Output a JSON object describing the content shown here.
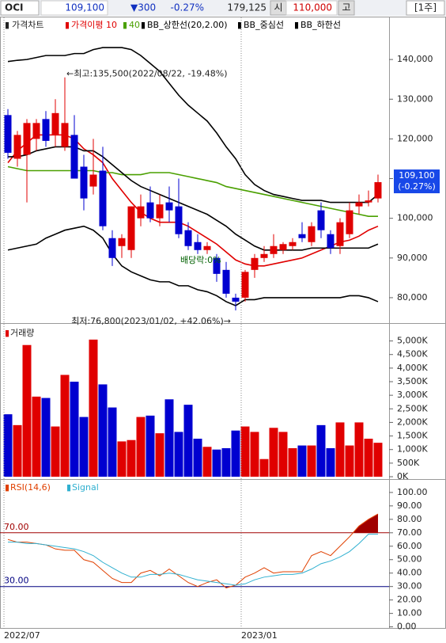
{
  "header": {
    "symbol": "OCI",
    "price": "109,100",
    "change": "▼300",
    "change_pct": "-0.27%",
    "volume": "179,125",
    "open_label": "시",
    "open": "110,000",
    "high_label": "고",
    "period": "[1주]"
  },
  "x_labels": [
    {
      "index": 0,
      "label": "2022/07"
    },
    {
      "index": 25,
      "label": "2023/01"
    }
  ],
  "chart_data": [
    {
      "type": "candlestick",
      "legend": "가격차트",
      "up_color": "#e00000",
      "down_color": "#0000d0",
      "open": [
        126000,
        115000,
        116000,
        120000,
        125000,
        121000,
        118000,
        121000,
        113000,
        108000,
        112000,
        95000,
        93000,
        92000,
        100000,
        104000,
        100000,
        104000,
        103000,
        97000,
        94000,
        92000,
        90000,
        87000,
        80000,
        80000,
        87000,
        90000,
        91000,
        92000,
        93000,
        96000,
        94000,
        102000,
        96000,
        93000,
        96000,
        103000,
        104000,
        105000
      ],
      "high": [
        127500,
        122000,
        125000,
        125000,
        127000,
        130000,
        135500,
        126000,
        116000,
        120000,
        118000,
        97000,
        96000,
        103000,
        106000,
        108000,
        106000,
        108000,
        110000,
        99000,
        96000,
        94000,
        91000,
        89000,
        81000,
        87000,
        91000,
        93000,
        96000,
        94000,
        95000,
        99000,
        99000,
        104000,
        97000,
        100000,
        104000,
        106000,
        107000,
        111000
      ],
      "low": [
        115000,
        113000,
        104000,
        117000,
        118000,
        118000,
        117000,
        110000,
        102000,
        106000,
        97000,
        88000,
        90000,
        90000,
        98000,
        99000,
        98000,
        99000,
        95000,
        92000,
        91000,
        91000,
        84000,
        80000,
        76800,
        79000,
        85000,
        89000,
        90000,
        91000,
        92000,
        94000,
        93000,
        95000,
        91000,
        91000,
        95000,
        101000,
        103000,
        104000
      ],
      "close": [
        116500,
        121000,
        124000,
        124000,
        119500,
        126500,
        124000,
        110000,
        105000,
        111000,
        98000,
        90000,
        95000,
        103000,
        103000,
        100000,
        103500,
        102000,
        96000,
        93000,
        92000,
        93000,
        86000,
        81000,
        79000,
        86500,
        90000,
        91000,
        93000,
        93500,
        94000,
        95000,
        98000,
        97000,
        92500,
        99000,
        102000,
        104000,
        104500,
        109100
      ],
      "series": [
        {
          "name": "가격이평 10",
          "color": "#e00000",
          "values": [
            114000,
            117000,
            119000,
            121000,
            121000,
            121000,
            121000,
            120000,
            117500,
            116000,
            114000,
            110000,
            107000,
            104000,
            101500,
            100000,
            99000,
            99000,
            99000,
            98000,
            96500,
            95000,
            93500,
            91500,
            89500,
            88500,
            88000,
            88000,
            88500,
            89000,
            89500,
            90000,
            91000,
            92000,
            93000,
            94000,
            94500,
            95500,
            97000,
            98000
          ]
        },
        {
          "name": "40",
          "color": "#4aa000",
          "values": [
            113000,
            112500,
            112000,
            112000,
            112000,
            112000,
            112000,
            112000,
            112000,
            112000,
            111500,
            111500,
            111000,
            111000,
            111000,
            111500,
            111500,
            111500,
            111000,
            110500,
            110000,
            109500,
            109000,
            108000,
            107500,
            107000,
            106500,
            106000,
            105500,
            105000,
            104500,
            104000,
            103500,
            103000,
            102500,
            102000,
            101500,
            101000,
            100500,
            100500
          ]
        },
        {
          "name": "BB_상한선(20,2.00)",
          "color": "#000000",
          "values": [
            139500,
            139800,
            140000,
            140500,
            141000,
            141000,
            141000,
            141500,
            141500,
            142500,
            143000,
            143000,
            143000,
            142500,
            141000,
            139000,
            137000,
            134000,
            131000,
            128500,
            126500,
            124500,
            121500,
            118000,
            115000,
            111000,
            108500,
            107000,
            106000,
            105500,
            105000,
            104500,
            104500,
            104500,
            104000,
            104000,
            104000,
            104000,
            104000,
            106000
          ]
        },
        {
          "name": "BB_중심선",
          "color": "#000000",
          "values": [
            115500,
            115500,
            116000,
            117000,
            117500,
            118000,
            118000,
            118000,
            117000,
            117000,
            115500,
            113500,
            111500,
            109500,
            108000,
            107000,
            106000,
            105000,
            104000,
            103000,
            102000,
            101000,
            99500,
            98000,
            96000,
            94500,
            93000,
            92000,
            92000,
            92000,
            92000,
            92000,
            92500,
            92500,
            92500,
            92500,
            92500,
            92500,
            92500,
            93500
          ]
        },
        {
          "name": "BB_하한선",
          "color": "#000000",
          "values": [
            92000,
            92500,
            93000,
            93500,
            95000,
            96000,
            97000,
            97500,
            98000,
            97000,
            95000,
            91000,
            88000,
            86500,
            85500,
            84500,
            84000,
            84000,
            83000,
            83000,
            82000,
            81500,
            80500,
            79000,
            78000,
            79500,
            79500,
            80000,
            80000,
            80000,
            80000,
            80000,
            80000,
            80000,
            80000,
            80000,
            80500,
            80500,
            80000,
            79000
          ]
        }
      ],
      "ylim": [
        74200,
        150600
      ],
      "yticks": [
        {
          "value": 80000,
          "label": "80,000"
        },
        {
          "value": 90000,
          "label": "90,000"
        },
        {
          "value": 100000,
          "label": "100,000"
        },
        {
          "value": 110000,
          "label": "110,000"
        },
        {
          "value": 120000,
          "label": "120,000"
        },
        {
          "value": 130000,
          "label": "130,000"
        },
        {
          "value": 140000,
          "label": "140,000"
        }
      ],
      "annotations": {
        "high": "←최고:135,500(2022/08/22, -19.48%)",
        "low": "최저:76,800(2023/01/02, +42.06%)→",
        "dividend": "배당락:0%"
      },
      "price_box": {
        "price": "109,100",
        "change": "(-0.27%)"
      }
    },
    {
      "type": "bar",
      "legend": "거래량",
      "up_color": "#e00000",
      "down_color": "#0000d0",
      "values": [
        2300,
        1900,
        4850,
        2950,
        2900,
        1850,
        3750,
        3500,
        2200,
        5050,
        3400,
        2550,
        1300,
        1350,
        2200,
        2250,
        1600,
        2850,
        1650,
        2650,
        1400,
        1100,
        1000,
        1050,
        1700,
        1850,
        1650,
        650,
        1800,
        1650,
        1050,
        1150,
        1150,
        1900,
        1050,
        2000,
        1150,
        2000,
        1400,
        1250
      ],
      "ylim": [
        0,
        5600
      ],
      "yticks": [
        {
          "value": 0,
          "label": "0K"
        },
        {
          "value": 500,
          "label": "500K"
        },
        {
          "value": 1000,
          "label": "1,000K"
        },
        {
          "value": 1500,
          "label": "1,500K"
        },
        {
          "value": 2000,
          "label": "2,000K"
        },
        {
          "value": 2500,
          "label": "2,500K"
        },
        {
          "value": 3000,
          "label": "3,000K"
        },
        {
          "value": 3500,
          "label": "3,500K"
        },
        {
          "value": 4000,
          "label": "4,000K"
        },
        {
          "value": 4500,
          "label": "4,500K"
        },
        {
          "value": 5000,
          "label": "5,000K"
        }
      ]
    },
    {
      "type": "line",
      "series": [
        {
          "name": "RSI(14,6)",
          "color": "#e04000",
          "values": [
            65,
            63,
            63,
            62,
            61,
            58,
            57,
            57,
            50,
            48,
            42,
            36,
            33,
            33,
            40,
            42,
            38,
            43,
            38,
            33,
            30,
            33,
            35,
            29,
            31,
            37,
            40,
            44,
            40,
            41,
            41,
            41,
            53,
            56,
            53,
            60,
            67,
            75,
            80,
            84
          ]
        },
        {
          "name": "Signal",
          "color": "#30b0d0",
          "values": [
            63,
            63,
            62,
            62,
            61,
            60,
            59,
            58,
            56,
            53,
            48,
            44,
            40,
            37,
            37,
            39,
            39,
            40,
            39,
            37,
            35,
            34,
            33,
            32,
            31,
            32,
            35,
            37,
            38,
            39,
            39,
            40,
            43,
            47,
            49,
            52,
            56,
            62,
            69,
            69
          ]
        }
      ],
      "ylim": [
        -2,
        107
      ],
      "yticks": [
        {
          "value": 0,
          "label": "0.00"
        },
        {
          "value": 10,
          "label": "10.00"
        },
        {
          "value": 20,
          "label": "20.00"
        },
        {
          "value": 30,
          "label": "30.00"
        },
        {
          "value": 40,
          "label": "40.00"
        },
        {
          "value": 50,
          "label": "50.00"
        },
        {
          "value": 60,
          "label": "60.00"
        },
        {
          "value": 70,
          "label": "70.00"
        },
        {
          "value": 80,
          "label": "80.00"
        },
        {
          "value": 90,
          "label": "90.00"
        },
        {
          "value": 100,
          "label": "100.00"
        }
      ],
      "reference_lines": [
        {
          "value": 70,
          "label": "70.00",
          "color": "#a00000"
        },
        {
          "value": 30,
          "label": "30.00",
          "color": "#000080"
        }
      ]
    }
  ]
}
